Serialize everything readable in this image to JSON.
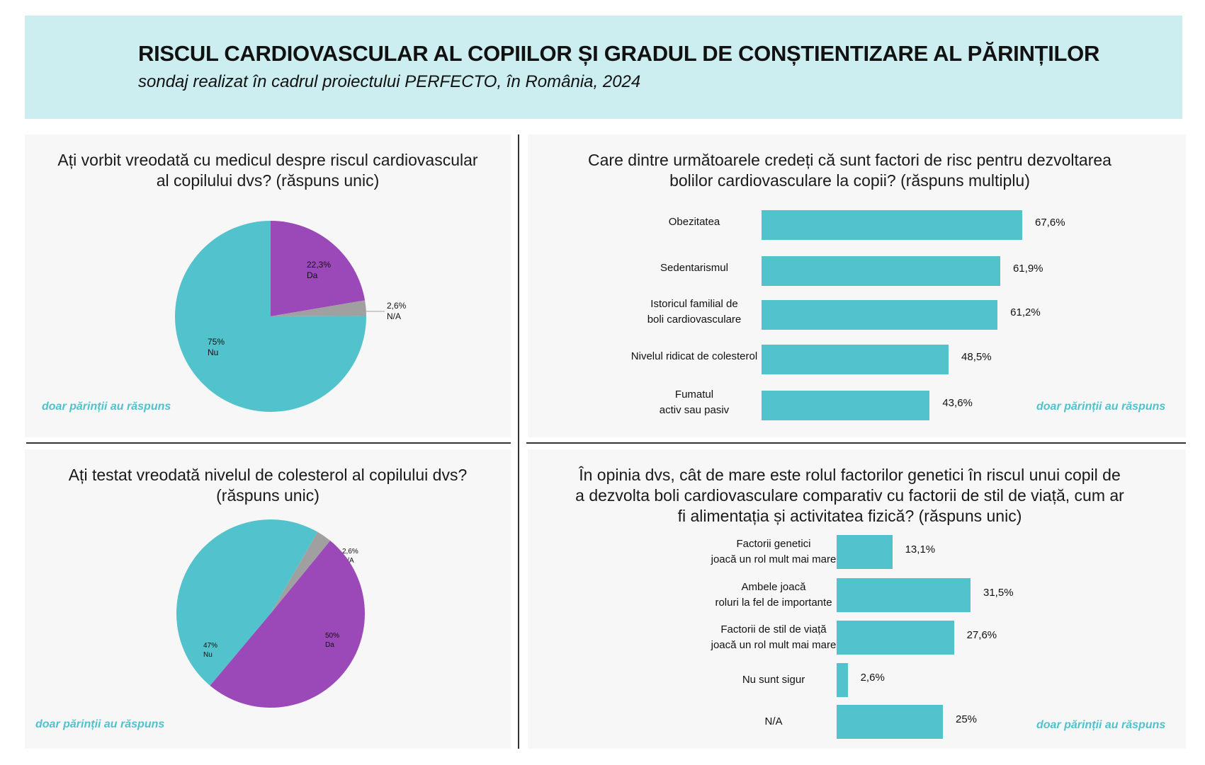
{
  "header": {
    "title": "RISCUL CARDIOVASCULAR AL COPIILOR ȘI GRADUL DE CONȘTIENTIZARE AL PĂRINȚILOR",
    "subtitle": "sondaj realizat în cadrul proiectului PERFECTO, în România, 2024"
  },
  "notes": {
    "tl": "doar părinții au răspuns",
    "tr": "doar părinții au răspuns",
    "bl": "doar părinții au răspuns",
    "br": "doar părinții au răspuns"
  },
  "colors": {
    "teal": "#52c2cc",
    "purple": "#9b48b8",
    "gray": "#a0a0a0",
    "header_bg": "#cceef0",
    "note": "#4fc2cc"
  },
  "chart_data": [
    {
      "type": "pie",
      "title_lines": [
        "Ați vorbit vreodată cu medicul despre riscul cardiovascular",
        "al copilului dvs? (răspuns unic)"
      ],
      "slices": [
        {
          "name": "Da",
          "value": 22.3,
          "label": "22,3%",
          "color": "#9b48b8"
        },
        {
          "name": "N/A",
          "value": 2.6,
          "label": "2,6%",
          "color": "#a0a0a0"
        },
        {
          "name": "Nu",
          "value": 75,
          "label": "75%",
          "color": "#52c2cc"
        }
      ]
    },
    {
      "type": "bar",
      "orientation": "horizontal",
      "title_lines": [
        "Care dintre următoarele credeți că sunt factori de risc pentru dezvoltarea",
        "bolilor cardiovasculare la copii? (răspuns multiplu)"
      ],
      "categories": [
        [
          "Obezitatea"
        ],
        [
          "Sedentarismul"
        ],
        [
          "Istoricul familial de",
          "boli cardiovasculare"
        ],
        [
          "Nivelul ridicat de colesterol"
        ],
        [
          "Fumatul",
          "activ sau pasiv"
        ]
      ],
      "values": [
        67.6,
        61.9,
        61.2,
        48.5,
        43.6
      ],
      "value_labels": [
        "67,6%",
        "61,9%",
        "61,2%",
        "48,5%",
        "43,6%"
      ]
    },
    {
      "type": "pie",
      "title_lines": [
        "Ați testat vreodată nivelul de colesterol al copilului dvs?",
        "(răspuns unic)"
      ],
      "slices": [
        {
          "name": "Nu",
          "value": 47,
          "label": "47%",
          "color": "#52c2cc"
        },
        {
          "name": "N/A",
          "value": 2.6,
          "label": "2,6%",
          "color": "#a0a0a0"
        },
        {
          "name": "Da",
          "value": 50,
          "label": "50%",
          "color": "#9b48b8"
        }
      ]
    },
    {
      "type": "bar",
      "orientation": "horizontal",
      "title_lines": [
        "În opinia dvs, cât de mare este rolul factorilor genetici în riscul unui copil de",
        "a dezvolta boli cardiovasculare comparativ cu factorii de stil de viață, cum ar",
        "fi alimentația și activitatea fizică? (răspuns unic)"
      ],
      "categories": [
        [
          "Factorii genetici",
          "joacă un rol mult mai mare"
        ],
        [
          "Ambele joacă",
          "roluri la fel de importante"
        ],
        [
          "Factorii de stil de viață",
          "joacă un rol mult mai mare"
        ],
        [
          "Nu sunt sigur"
        ],
        [
          "N/A"
        ]
      ],
      "values": [
        13.1,
        31.5,
        27.6,
        2.6,
        25
      ],
      "value_labels": [
        "13,1%",
        "31,5%",
        "27,6%",
        "2,6%",
        "25%"
      ]
    }
  ]
}
